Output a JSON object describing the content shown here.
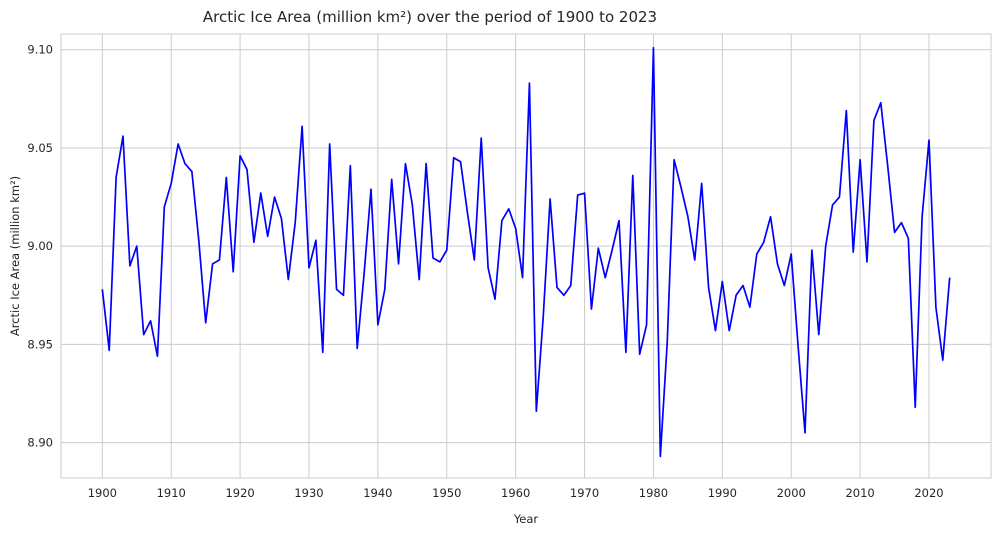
{
  "chart_data": {
    "type": "line",
    "title": "Arctic Ice Area (million km²) over the period of 1900 to 2023",
    "xlabel": "Year",
    "ylabel": "Arctic Ice Area (million km²)",
    "xlim": [
      1894,
      2029
    ],
    "ylim": [
      8.882,
      9.108
    ],
    "xticks": [
      1900,
      1910,
      1920,
      1930,
      1940,
      1950,
      1960,
      1970,
      1980,
      1990,
      2000,
      2010,
      2020
    ],
    "yticks": [
      8.9,
      8.95,
      9.0,
      9.05,
      9.1
    ],
    "ytick_labels": [
      "8.90",
      "8.95",
      "9.00",
      "9.05",
      "9.10"
    ],
    "grid": true,
    "colors": {
      "line": "#0000ff",
      "grid": "#cccccc",
      "frame": "#cccccc"
    },
    "x": [
      1900,
      1901,
      1902,
      1903,
      1904,
      1905,
      1906,
      1907,
      1908,
      1909,
      1910,
      1911,
      1912,
      1913,
      1914,
      1915,
      1916,
      1917,
      1918,
      1919,
      1920,
      1921,
      1922,
      1923,
      1924,
      1925,
      1926,
      1927,
      1928,
      1929,
      1930,
      1931,
      1932,
      1933,
      1934,
      1935,
      1936,
      1937,
      1938,
      1939,
      1940,
      1941,
      1942,
      1943,
      1944,
      1945,
      1946,
      1947,
      1948,
      1949,
      1950,
      1951,
      1952,
      1953,
      1954,
      1955,
      1956,
      1957,
      1958,
      1959,
      1960,
      1961,
      1962,
      1963,
      1964,
      1965,
      1966,
      1967,
      1968,
      1969,
      1970,
      1971,
      1972,
      1973,
      1974,
      1975,
      1976,
      1977,
      1978,
      1979,
      1980,
      1981,
      1982,
      1983,
      1984,
      1985,
      1986,
      1987,
      1988,
      1989,
      1990,
      1991,
      1992,
      1993,
      1994,
      1995,
      1996,
      1997,
      1998,
      1999,
      2000,
      2001,
      2002,
      2003,
      2004,
      2005,
      2006,
      2007,
      2008,
      2009,
      2010,
      2011,
      2012,
      2013,
      2014,
      2015,
      2016,
      2017,
      2018,
      2019,
      2020,
      2021,
      2022,
      2023
    ],
    "series": [
      {
        "values": [
          8.978,
          8.947,
          9.035,
          9.056,
          8.99,
          9.0,
          8.955,
          8.962,
          8.944,
          9.02,
          9.032,
          9.052,
          9.042,
          9.038,
          9.003,
          8.961,
          8.991,
          8.993,
          9.035,
          8.987,
          9.046,
          9.039,
          9.002,
          9.027,
          9.005,
          9.025,
          9.014,
          8.983,
          9.012,
          9.061,
          8.989,
          9.003,
          8.946,
          9.052,
          8.978,
          8.975,
          9.041,
          8.948,
          8.986,
          9.029,
          8.96,
          8.978,
          9.034,
          8.991,
          9.042,
          9.021,
          8.983,
          9.042,
          8.994,
          8.992,
          8.998,
          9.045,
          9.043,
          9.017,
          8.993,
          9.055,
          8.989,
          8.973,
          9.013,
          9.019,
          9.009,
          8.984,
          9.083,
          8.916,
          8.964,
          9.024,
          8.979,
          8.975,
          8.98,
          9.026,
          9.027,
          8.968,
          8.999,
          8.984,
          8.998,
          9.013,
          8.946,
          9.036,
          8.945,
          8.96,
          9.101,
          8.893,
          8.951,
          9.044,
          9.03,
          9.015,
          8.993,
          9.032,
          8.979,
          8.957,
          8.982,
          8.957,
          8.975,
          8.98,
          8.969,
          8.996,
          9.002,
          9.015,
          8.991,
          8.98,
          8.996,
          8.949,
          8.905,
          8.998,
          8.955,
          9.0,
          9.021,
          9.025,
          9.069,
          8.997,
          9.044,
          8.992,
          9.064,
          9.073,
          9.041,
          9.007,
          9.012,
          9.004,
          8.918,
          9.015,
          9.054,
          8.969,
          8.942,
          8.984
        ]
      }
    ]
  }
}
